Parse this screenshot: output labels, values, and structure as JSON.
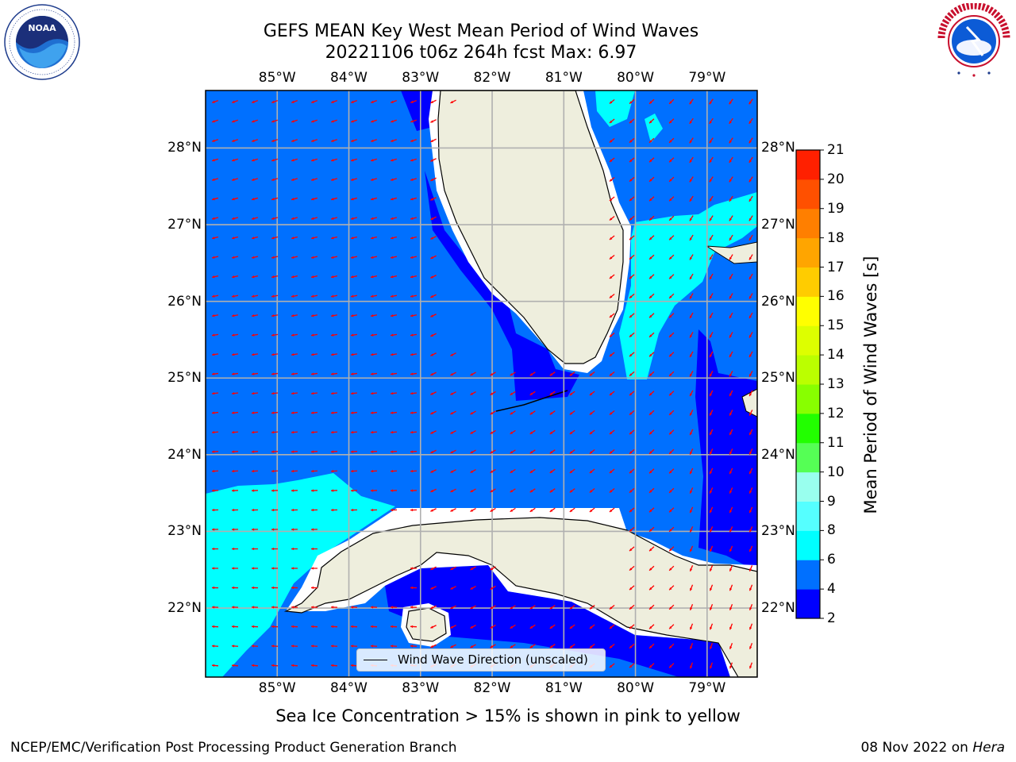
{
  "title": {
    "line1": "GEFS MEAN Key West Mean Period of Wind Waves",
    "line2": "20221106 t06z 264h fcst   Max: 6.97"
  },
  "map": {
    "lon_labels": [
      "85°W",
      "84°W",
      "83°W",
      "82°W",
      "81°W",
      "80°W",
      "79°W"
    ],
    "lat_labels": [
      "28°N",
      "27°N",
      "26°N",
      "25°N",
      "24°N",
      "23°N",
      "22°N"
    ],
    "lon_values": [
      -85,
      -84,
      -83,
      -82,
      -81,
      -80,
      -79
    ],
    "lat_values": [
      28,
      27,
      26,
      25,
      24,
      23,
      22
    ],
    "lon_range": [
      -86,
      -78.3
    ],
    "lat_range": [
      21.1,
      28.75
    ],
    "gridlines": true,
    "land_color": "#eeeedd",
    "arrow_color": "#ff0000",
    "legend": {
      "entry": "Wind Wave Direction (unscaled)"
    }
  },
  "colorbar": {
    "title": "Mean Period of Wind Waves [s]",
    "ticks": [
      "2",
      "4",
      "6",
      "8",
      "9",
      "10",
      "11",
      "12",
      "13",
      "14",
      "15",
      "16",
      "17",
      "18",
      "19",
      "20",
      "21"
    ],
    "colors": [
      "#0000ff",
      "#0070ff",
      "#00ffff",
      "#55ffff",
      "#99ffee",
      "#55ff55",
      "#22ff00",
      "#88ff00",
      "#bbff00",
      "#ddff00",
      "#ffff00",
      "#ffcc00",
      "#ffa500",
      "#ff7f00",
      "#ff5000",
      "#ff2000"
    ]
  },
  "caption": "Sea Ice Concentration > 15% is shown in pink to yellow",
  "footer": {
    "left": "NCEP/EMC/Verification Post Processing Product Generation Branch",
    "right_prefix": "08 Nov 2022 on ",
    "right_host": "Hera"
  },
  "logos": {
    "noaa": "NOAA",
    "nws": "NATIONAL WEATHER SERVICE"
  }
}
